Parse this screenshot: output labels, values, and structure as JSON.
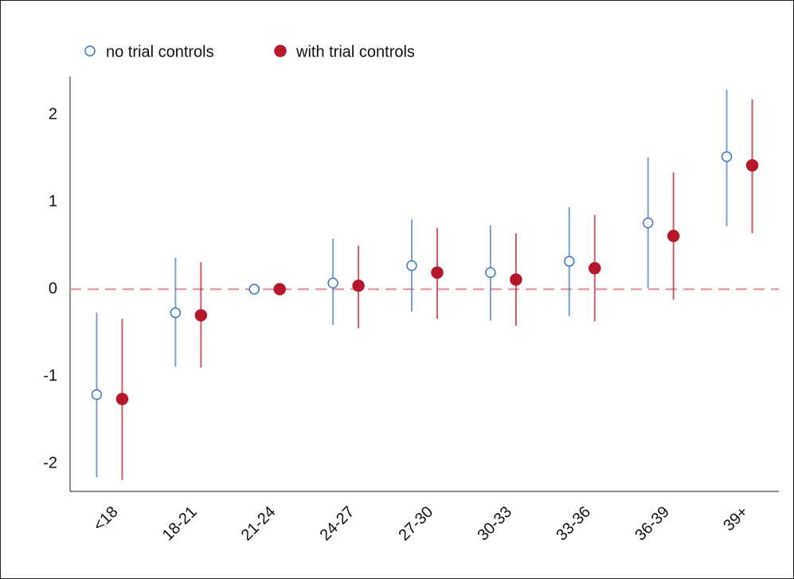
{
  "chart_data": {
    "type": "errorbar",
    "categories": [
      "<18",
      "18-21",
      "21-24",
      "24-27",
      "27-30",
      "30-33",
      "33-36",
      "36-39",
      "39+"
    ],
    "series": [
      {
        "name": "no trial controls",
        "color": "#3f78c0",
        "marker": "open",
        "values": [
          -1.21,
          -0.27,
          0,
          0.07,
          0.27,
          0.19,
          0.32,
          0.76,
          1.52
        ],
        "lower": [
          -2.16,
          -0.89,
          null,
          -0.41,
          -0.26,
          -0.36,
          -0.31,
          0.01,
          0.72
        ],
        "upper": [
          -0.27,
          0.36,
          null,
          0.58,
          0.8,
          0.73,
          0.94,
          1.51,
          2.29
        ]
      },
      {
        "name": "with trial controls",
        "color": "#b5182b",
        "marker": "filled",
        "values": [
          -1.26,
          -0.3,
          0,
          0.04,
          0.19,
          0.11,
          0.24,
          0.61,
          1.42
        ],
        "lower": [
          -2.19,
          -0.9,
          null,
          -0.45,
          -0.34,
          -0.42,
          -0.37,
          -0.12,
          0.64
        ],
        "upper": [
          -0.34,
          0.31,
          null,
          0.5,
          0.7,
          0.64,
          0.85,
          1.34,
          2.18
        ]
      }
    ],
    "ylim": [
      -2.32,
      2.44
    ],
    "yticks": [
      -2,
      -1,
      0,
      1,
      2
    ],
    "hline": 0,
    "hline_color": "#e3a0a8",
    "legend": "top-left",
    "grid": false
  }
}
